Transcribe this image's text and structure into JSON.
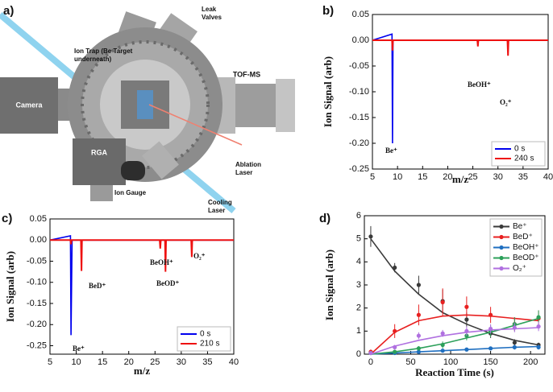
{
  "panel_a": {
    "label": "a)",
    "labels": {
      "ion_trap": [
        "Ion Trap (Be Target",
        "underneath)"
      ],
      "leak_valves": [
        "Leak",
        "Valves"
      ],
      "tof": [
        "TOF-MS"
      ],
      "camera": [
        "Camera"
      ],
      "ablation": [
        "Ablation",
        "Laser"
      ],
      "rga": [
        "RGA"
      ],
      "ion_gauge": [
        "Ion Gauge"
      ],
      "cooling": [
        "Cooling",
        "Laser"
      ]
    }
  },
  "chart_data": [
    {
      "type": "line",
      "panel": "b)",
      "xlabel": "m/z",
      "ylabel": "Ion Signal (arb)",
      "xlim": [
        5,
        40
      ],
      "xticks": [
        5,
        10,
        15,
        20,
        25,
        30,
        35,
        40
      ],
      "ylim": [
        -0.25,
        0.05
      ],
      "yticks": [
        -0.25,
        {
          "value": -0.2,
          "label": "-0.20"
        },
        -0.15,
        {
          "value": -0.1,
          "label": "-0.10"
        },
        -0.05,
        {
          "value": 0,
          "label": "0.00"
        },
        0.05
      ],
      "legend": "lower right",
      "annotations": [
        "Be⁺",
        "BeOH⁺",
        "O₂⁺"
      ],
      "series": [
        {
          "name": "0 s",
          "color": "#0000ee",
          "x": [
            5,
            8.9,
            9,
            9.1,
            40
          ],
          "values": [
            0,
            0.012,
            -0.2,
            0,
            0
          ]
        },
        {
          "name": "240 s",
          "color": "#ee1111",
          "x": [
            5,
            8.9,
            9,
            9.1,
            25.9,
            26,
            26.1,
            31.9,
            32,
            32.1,
            40
          ],
          "values": [
            0,
            0,
            -0.02,
            0,
            0,
            -0.012,
            0,
            0,
            -0.03,
            0,
            0
          ]
        }
      ]
    },
    {
      "type": "line",
      "panel": "c)",
      "xlabel": "m/z",
      "ylabel": "Ion Signal (arb)",
      "xlim": [
        5,
        40
      ],
      "xticks": [
        5,
        10,
        15,
        20,
        25,
        30,
        35,
        40
      ],
      "ylim": [
        -0.27,
        0.05
      ],
      "yticks": [
        -0.25,
        {
          "value": -0.2,
          "label": "-0.20"
        },
        -0.15,
        {
          "value": -0.1,
          "label": "-0.10"
        },
        -0.05,
        {
          "value": 0,
          "label": "0.00"
        },
        0.05
      ],
      "legend": "lower right",
      "annotations": [
        "Be⁺",
        "BeD⁺",
        "BeOH⁺",
        "BeOD⁺",
        "O₂⁺"
      ],
      "series": [
        {
          "name": "0 s",
          "color": "#0000ee",
          "x": [
            5,
            8.9,
            9,
            9.2,
            40
          ],
          "values": [
            0,
            0.01,
            -0.225,
            0,
            0
          ]
        },
        {
          "name": "210 s",
          "color": "#ee1111",
          "x": [
            5,
            8.9,
            9,
            9.1,
            10.9,
            11,
            11.1,
            25.9,
            26,
            26.1,
            26.9,
            27,
            27.1,
            31.9,
            32,
            32.1,
            40
          ],
          "values": [
            0,
            0,
            -0.01,
            0,
            0,
            -0.073,
            0,
            0,
            -0.02,
            0,
            0,
            -0.075,
            0,
            0,
            -0.04,
            0,
            0
          ]
        }
      ]
    },
    {
      "type": "scatter",
      "panel": "d)",
      "xlabel": "Reaction Time (s)",
      "ylabel": "Ion Signal (arb)",
      "xlim": [
        -8,
        218
      ],
      "xticks": [
        0,
        50,
        100,
        150,
        200
      ],
      "ylim": [
        0,
        6
      ],
      "yticks": [
        0,
        1,
        2,
        3,
        4,
        5,
        6
      ],
      "legend": "upper right",
      "x": [
        0,
        30,
        60,
        90,
        120,
        150,
        180,
        210
      ],
      "series": [
        {
          "name": "Be⁺",
          "color": "#3a3a3a",
          "values": [
            5.1,
            3.75,
            3.0,
            2.3,
            1.5,
            0.9,
            0.5,
            0.4
          ],
          "errors": [
            0.45,
            0.2,
            0.4,
            0.5,
            0.3,
            0.2,
            0.15,
            0.1
          ],
          "fit": [
            5.0,
            3.6,
            2.6,
            1.8,
            1.3,
            0.9,
            0.6,
            0.4
          ]
        },
        {
          "name": "BeD⁺",
          "color": "#e82020",
          "values": [
            0.1,
            1.0,
            1.7,
            2.25,
            2.05,
            1.7,
            1.3,
            1.55
          ],
          "errors": [
            0.1,
            0.3,
            0.45,
            0.6,
            0.45,
            0.35,
            0.3,
            0.35
          ],
          "fit": [
            0,
            0.95,
            1.45,
            1.65,
            1.7,
            1.65,
            1.55,
            1.45
          ]
        },
        {
          "name": "BeOH⁺",
          "color": "#1f6fc0",
          "values": [
            0.05,
            0.05,
            0.1,
            0.15,
            0.2,
            0.25,
            0.3,
            0.3
          ],
          "errors": [
            0.05,
            0.05,
            0.05,
            0.08,
            0.08,
            0.08,
            0.1,
            0.1
          ],
          "fit": [
            0,
            0.05,
            0.1,
            0.15,
            0.2,
            0.25,
            0.3,
            0.33
          ]
        },
        {
          "name": "BeOD⁺",
          "color": "#2ca05a",
          "values": [
            0.05,
            0.1,
            0.25,
            0.4,
            0.8,
            1.0,
            1.3,
            1.6
          ],
          "errors": [
            0.05,
            0.05,
            0.1,
            0.15,
            0.2,
            0.25,
            0.3,
            0.3
          ],
          "fit": [
            0,
            0.1,
            0.25,
            0.45,
            0.7,
            0.95,
            1.25,
            1.55
          ]
        },
        {
          "name": "O₂⁺",
          "color": "#b070e0",
          "values": [
            0.05,
            0.3,
            0.8,
            0.9,
            1.0,
            1.1,
            1.15,
            1.2
          ],
          "errors": [
            0.05,
            0.1,
            0.15,
            0.15,
            0.2,
            0.2,
            0.2,
            0.2
          ],
          "fit": [
            0,
            0.35,
            0.6,
            0.8,
            0.95,
            1.05,
            1.1,
            1.15
          ]
        }
      ]
    }
  ]
}
